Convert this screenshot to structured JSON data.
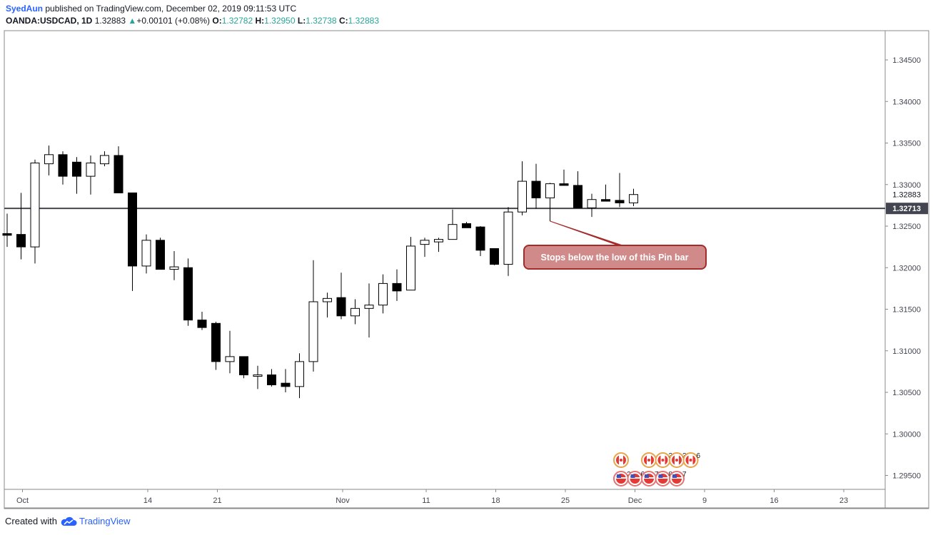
{
  "header": {
    "author": "SyedAun",
    "published_text": " published on TradingView.com, December 02, 2019 09:11:53 UTC",
    "symbol": "OANDA:USDCAD, 1D",
    "last": "1.32883",
    "change_arrow": "▲",
    "change": "+0.00101 (+0.08%)",
    "o_label": "O:",
    "o_value": "1.32782",
    "h_label": "H:",
    "h_value": "1.32950",
    "l_label": "L:",
    "l_value": "1.32738",
    "c_label": "C:",
    "c_value": "1.32883"
  },
  "footer": {
    "created_with": "Created with",
    "brand": "TradingView",
    "logo_icon": "tradingview-cloud-icon"
  },
  "annotation": {
    "text": "Stops below the low of this Pin bar",
    "fill": "#d08a8a",
    "stroke": "#a52a2a"
  },
  "colors": {
    "bull": "#ffffff",
    "bear": "#000000",
    "wick": "#000000",
    "hline": "#434651",
    "accent": "#2962ff",
    "up": "#26a69a"
  },
  "chart_data": {
    "type": "candlestick",
    "symbol": "OANDA:USDCAD",
    "timeframe": "1D",
    "ylim": [
      1.2937,
      1.3495
    ],
    "y_ticks": [
      "1.34500",
      "1.34000",
      "1.33500",
      "1.33000",
      "1.32500",
      "1.32000",
      "1.31500",
      "1.31000",
      "1.30500",
      "1.30000",
      "1.29500"
    ],
    "price_labels": [
      {
        "value": 1.32883,
        "text": "1.32883",
        "style": "plain"
      },
      {
        "value": 1.32713,
        "text": "1.32713",
        "style": "highlight"
      }
    ],
    "horizontal_line": 1.32713,
    "x_labels": [
      {
        "text": "Oct",
        "idx": 1
      },
      {
        "text": "14",
        "idx": 10
      },
      {
        "text": "21",
        "idx": 15
      },
      {
        "text": "Nov",
        "idx": 24
      },
      {
        "text": "11",
        "idx": 30
      },
      {
        "text": "18",
        "idx": 35
      },
      {
        "text": "25",
        "idx": 40
      },
      {
        "text": "Dec",
        "idx": 45
      },
      {
        "text": "9",
        "idx": 50
      },
      {
        "text": "16",
        "idx": 55
      },
      {
        "text": "23",
        "idx": 60
      }
    ],
    "candles": [
      {
        "o": 1.3241,
        "h": 1.3265,
        "l": 1.3225,
        "c": 1.3239
      },
      {
        "o": 1.324,
        "h": 1.329,
        "l": 1.321,
        "c": 1.3225
      },
      {
        "o": 1.3225,
        "h": 1.333,
        "l": 1.3205,
        "c": 1.3326
      },
      {
        "o": 1.3325,
        "h": 1.3347,
        "l": 1.3311,
        "c": 1.3336
      },
      {
        "o": 1.3336,
        "h": 1.334,
        "l": 1.33,
        "c": 1.331
      },
      {
        "o": 1.3327,
        "h": 1.3333,
        "l": 1.3289,
        "c": 1.331
      },
      {
        "o": 1.331,
        "h": 1.3335,
        "l": 1.3288,
        "c": 1.3326
      },
      {
        "o": 1.3325,
        "h": 1.334,
        "l": 1.3322,
        "c": 1.3335
      },
      {
        "o": 1.3335,
        "h": 1.3346,
        "l": 1.329,
        "c": 1.329
      },
      {
        "o": 1.329,
        "h": 1.329,
        "l": 1.3172,
        "c": 1.3202
      },
      {
        "o": 1.3202,
        "h": 1.324,
        "l": 1.3193,
        "c": 1.3233
      },
      {
        "o": 1.3233,
        "h": 1.3236,
        "l": 1.3198,
        "c": 1.3198
      },
      {
        "o": 1.3198,
        "h": 1.322,
        "l": 1.3185,
        "c": 1.3201
      },
      {
        "o": 1.32,
        "h": 1.3211,
        "l": 1.313,
        "c": 1.3137
      },
      {
        "o": 1.3137,
        "h": 1.3147,
        "l": 1.3125,
        "c": 1.3128
      },
      {
        "o": 1.3133,
        "h": 1.3135,
        "l": 1.3077,
        "c": 1.3087
      },
      {
        "o": 1.3087,
        "h": 1.3124,
        "l": 1.3073,
        "c": 1.3093
      },
      {
        "o": 1.3093,
        "h": 1.3093,
        "l": 1.3067,
        "c": 1.3071
      },
      {
        "o": 1.3071,
        "h": 1.3082,
        "l": 1.3054,
        "c": 1.3071
      },
      {
        "o": 1.3071,
        "h": 1.3078,
        "l": 1.3057,
        "c": 1.3059
      },
      {
        "o": 1.3061,
        "h": 1.3078,
        "l": 1.305,
        "c": 1.3057
      },
      {
        "o": 1.3057,
        "h": 1.3097,
        "l": 1.3043,
        "c": 1.3087
      },
      {
        "o": 1.3087,
        "h": 1.3209,
        "l": 1.3075,
        "c": 1.3159
      },
      {
        "o": 1.3159,
        "h": 1.317,
        "l": 1.314,
        "c": 1.3163
      },
      {
        "o": 1.3164,
        "h": 1.3194,
        "l": 1.3138,
        "c": 1.3142
      },
      {
        "o": 1.3142,
        "h": 1.3162,
        "l": 1.3132,
        "c": 1.3151
      },
      {
        "o": 1.3151,
        "h": 1.3181,
        "l": 1.3116,
        "c": 1.3155
      },
      {
        "o": 1.3155,
        "h": 1.3192,
        "l": 1.3145,
        "c": 1.3181
      },
      {
        "o": 1.3181,
        "h": 1.3198,
        "l": 1.316,
        "c": 1.3172
      },
      {
        "o": 1.3173,
        "h": 1.3237,
        "l": 1.3173,
        "c": 1.3226
      },
      {
        "o": 1.3228,
        "h": 1.3236,
        "l": 1.3213,
        "c": 1.3233
      },
      {
        "o": 1.3231,
        "h": 1.3236,
        "l": 1.3219,
        "c": 1.3234
      },
      {
        "o": 1.3234,
        "h": 1.327,
        "l": 1.3234,
        "c": 1.3252
      },
      {
        "o": 1.3253,
        "h": 1.3255,
        "l": 1.3248,
        "c": 1.3248
      },
      {
        "o": 1.3249,
        "h": 1.325,
        "l": 1.3214,
        "c": 1.3221
      },
      {
        "o": 1.3223,
        "h": 1.3223,
        "l": 1.3203,
        "c": 1.3204
      },
      {
        "o": 1.3204,
        "h": 1.3273,
        "l": 1.319,
        "c": 1.3267
      },
      {
        "o": 1.3267,
        "h": 1.3328,
        "l": 1.3263,
        "c": 1.3304
      },
      {
        "o": 1.3304,
        "h": 1.3325,
        "l": 1.3271,
        "c": 1.3284
      },
      {
        "o": 1.3284,
        "h": 1.3302,
        "l": 1.3256,
        "c": 1.3301
      },
      {
        "o": 1.3301,
        "h": 1.3318,
        "l": 1.33,
        "c": 1.3299
      },
      {
        "o": 1.3299,
        "h": 1.3316,
        "l": 1.3272,
        "c": 1.3272
      },
      {
        "o": 1.3272,
        "h": 1.3289,
        "l": 1.3261,
        "c": 1.3282
      },
      {
        "o": 1.3282,
        "h": 1.33,
        "l": 1.328,
        "c": 1.328
      },
      {
        "o": 1.3281,
        "h": 1.3314,
        "l": 1.3273,
        "c": 1.3278
      },
      {
        "o": 1.3278,
        "h": 1.3295,
        "l": 1.3274,
        "c": 1.3288
      }
    ],
    "event_icons": {
      "top_row": [
        {
          "idx": 44,
          "count": "",
          "icon": "canada-flag-icon"
        },
        {
          "idx": 46,
          "count": "",
          "icon": "canada-flag-icon"
        },
        {
          "idx": 47,
          "count": "3",
          "icon": "canada-flag-icon"
        },
        {
          "idx": 48,
          "count": "3",
          "icon": "canada-flag-icon"
        },
        {
          "idx": 49,
          "count": "6",
          "icon": "canada-flag-icon"
        }
      ],
      "bottom_row": [
        {
          "idx": 44,
          "count": "2",
          "icon": "us-flag-icon"
        },
        {
          "idx": 45,
          "count": "6",
          "icon": "us-flag-icon"
        },
        {
          "idx": 46,
          "count": "7",
          "icon": "us-flag-icon"
        },
        {
          "idx": 47,
          "count": "8",
          "icon": "us-flag-icon"
        },
        {
          "idx": 48,
          "count": "7",
          "icon": "us-flag-icon"
        }
      ]
    }
  }
}
